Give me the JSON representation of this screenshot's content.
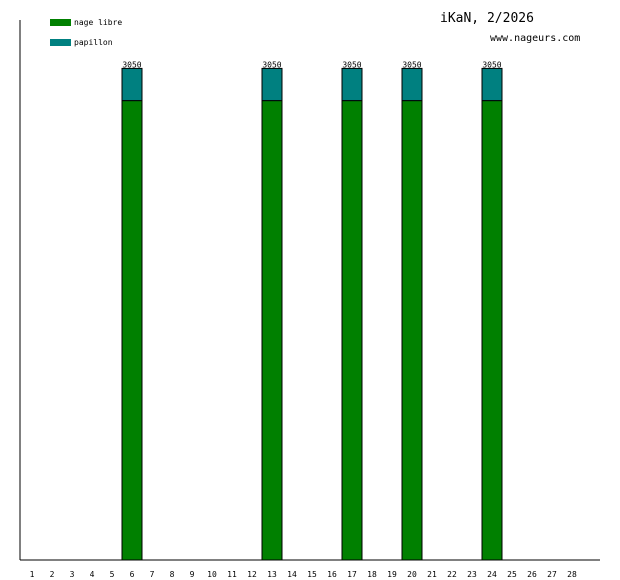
{
  "chart_data": {
    "type": "bar",
    "stacked": true,
    "title": "iKaN, 2/2026",
    "subtitle": "www.nageurs.com",
    "xlabel": "",
    "ylabel": "",
    "categories": [
      "1",
      "2",
      "3",
      "4",
      "5",
      "6",
      "7",
      "8",
      "9",
      "10",
      "11",
      "12",
      "13",
      "14",
      "15",
      "16",
      "17",
      "18",
      "19",
      "20",
      "21",
      "22",
      "23",
      "24",
      "25",
      "26",
      "27",
      "28"
    ],
    "series": [
      {
        "name": "nage libre",
        "color": "#008000",
        "values": [
          0,
          0,
          0,
          0,
          0,
          2850,
          0,
          0,
          0,
          0,
          0,
          0,
          2850,
          0,
          0,
          0,
          2850,
          0,
          0,
          2850,
          0,
          0,
          0,
          2850,
          0,
          0,
          0,
          0
        ]
      },
      {
        "name": "papillon",
        "color": "#008080",
        "values": [
          0,
          0,
          0,
          0,
          0,
          200,
          0,
          0,
          0,
          0,
          0,
          0,
          200,
          0,
          0,
          0,
          200,
          0,
          0,
          200,
          0,
          0,
          0,
          200,
          0,
          0,
          0,
          0
        ]
      }
    ],
    "totals": [
      0,
      0,
      0,
      0,
      0,
      3050,
      0,
      0,
      0,
      0,
      0,
      0,
      3050,
      0,
      0,
      0,
      3050,
      0,
      0,
      3050,
      0,
      0,
      0,
      3050,
      0,
      0,
      0,
      0
    ],
    "total_labels": [
      "",
      "",
      "",
      "",
      "",
      "3050",
      "",
      "",
      "",
      "",
      "",
      "",
      "3050",
      "",
      "",
      "",
      "3050",
      "",
      "",
      "3050",
      "",
      "",
      "",
      "3050",
      "",
      "",
      "",
      ""
    ],
    "ylim": [
      0,
      3350
    ],
    "grid": false,
    "legend_position": "top-left",
    "bar_outline_color": "#000000",
    "axis_color": "#000000"
  }
}
